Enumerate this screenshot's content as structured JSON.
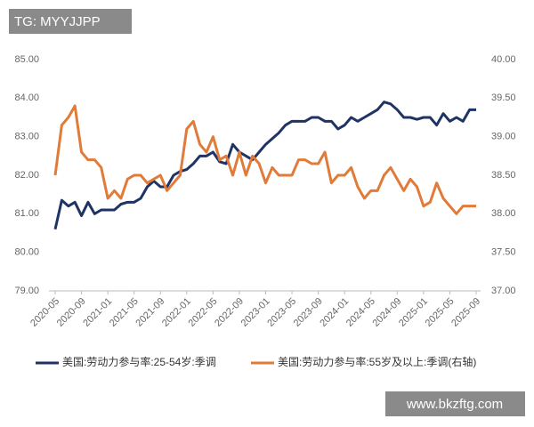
{
  "watermarks": [
    "TG: MYYJJPP",
    "www.bkzftg.com"
  ],
  "chart_data": {
    "type": "line",
    "categories": [
      "2020-05",
      null,
      null,
      null,
      "2020-09",
      null,
      null,
      null,
      "2021-01",
      null,
      null,
      null,
      "2021-05",
      null,
      null,
      null,
      "2021-09",
      null,
      null,
      null,
      "2022-01",
      null,
      null,
      null,
      "2022-05",
      null,
      null,
      null,
      "2022-09",
      null,
      null,
      null,
      "2023-01",
      null,
      null,
      null,
      "2023-05",
      null,
      null,
      null,
      "2023-09",
      null,
      null,
      null,
      "2024-01",
      null,
      null,
      null,
      "2024-05",
      null,
      null,
      null,
      "2024-09",
      null,
      null,
      null,
      "2025-01",
      null,
      null,
      null,
      "2025-05",
      null,
      null,
      null,
      "2025-09"
    ],
    "series": [
      {
        "name": "美国:劳动力参与率:25-54岁:季调",
        "color": "#1f3464",
        "values": [
          80.6,
          81.35,
          81.2,
          81.3,
          80.95,
          81.3,
          81.0,
          81.1,
          81.1,
          81.1,
          81.25,
          81.3,
          81.3,
          81.4,
          81.7,
          81.85,
          81.7,
          81.7,
          82.0,
          82.1,
          82.15,
          82.3,
          82.5,
          82.5,
          82.6,
          82.35,
          82.3,
          82.8,
          82.6,
          82.5,
          82.4,
          82.6,
          82.8,
          82.95,
          83.1,
          83.3,
          83.4,
          83.4,
          83.4,
          83.5,
          83.5,
          83.4,
          83.4,
          83.2,
          83.3,
          83.5,
          83.4,
          83.5,
          83.6,
          83.7,
          83.9,
          83.85,
          83.7,
          83.5,
          83.5,
          83.45,
          83.5,
          83.5,
          83.3,
          83.6,
          83.4,
          83.5,
          83.4,
          83.7,
          83.7
        ]
      },
      {
        "name": "美国:劳动力参与率:55岁及以上:季调(右轴)",
        "color": "#e07b39",
        "axis": "y2",
        "values": [
          38.5,
          39.15,
          39.25,
          39.4,
          38.8,
          38.7,
          38.7,
          38.6,
          38.2,
          38.3,
          38.2,
          38.45,
          38.5,
          38.5,
          38.4,
          38.45,
          38.5,
          38.3,
          38.4,
          38.5,
          39.1,
          39.2,
          38.9,
          38.8,
          39.0,
          38.7,
          38.75,
          38.5,
          38.8,
          38.5,
          38.75,
          38.65,
          38.4,
          38.6,
          38.5,
          38.5,
          38.5,
          38.7,
          38.7,
          38.65,
          38.65,
          38.8,
          38.4,
          38.5,
          38.5,
          38.6,
          38.35,
          38.2,
          38.3,
          38.3,
          38.5,
          38.6,
          38.45,
          38.3,
          38.45,
          38.35,
          38.1,
          38.15,
          38.4,
          38.2,
          38.1,
          38.0,
          38.1,
          38.1,
          38.1
        ]
      }
    ],
    "ylim": [
      79,
      85
    ],
    "yticks": [
      {
        "value": 79,
        "label": "79.00"
      },
      {
        "value": 80,
        "label": "80.00"
      },
      {
        "value": 81,
        "label": "81.00"
      },
      {
        "value": 82,
        "label": "82.00"
      },
      {
        "value": 83,
        "label": "83.00"
      },
      {
        "value": 84,
        "label": "84.00"
      },
      {
        "value": 85,
        "label": "85.00"
      }
    ],
    "y2lim": [
      37,
      40
    ],
    "y2ticks": [
      {
        "value": 37,
        "label": "37.00"
      },
      {
        "value": 37.5,
        "label": "37.50"
      },
      {
        "value": 38,
        "label": "38.00"
      },
      {
        "value": 38.5,
        "label": "38.50"
      },
      {
        "value": 39,
        "label": "39.00"
      },
      {
        "value": 39.5,
        "label": "39.50"
      },
      {
        "value": 40,
        "label": "40.00"
      }
    ],
    "grid": false,
    "legend": "bottom"
  }
}
